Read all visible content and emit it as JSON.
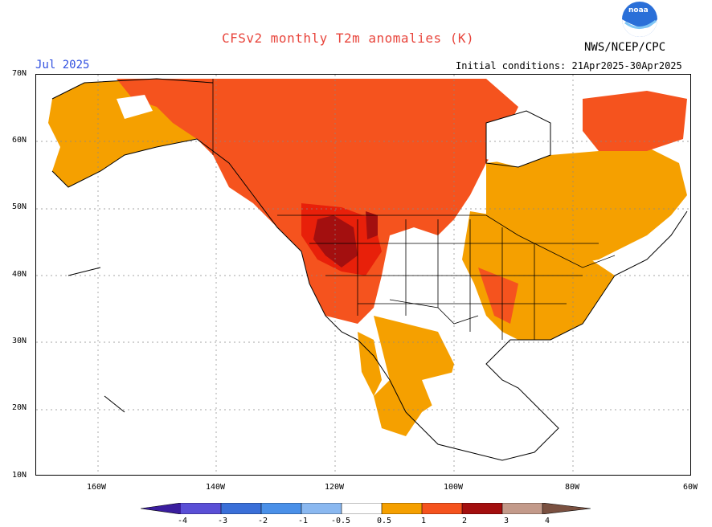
{
  "header": {
    "title": "CFSv2 monthly T2m anomalies (K)",
    "month": "Jul 2025",
    "agency": "NWS/NCEP/CPC",
    "initial_conditions": "Initial conditions: 21Apr2025-30Apr2025",
    "logo_text": "noaa"
  },
  "axes": {
    "lat_labels": [
      "70N",
      "60N",
      "50N",
      "40N",
      "30N",
      "20N",
      "10N"
    ],
    "lon_labels": [
      "160W",
      "140W",
      "120W",
      "100W",
      "80W",
      "60W"
    ]
  },
  "legend": {
    "labels": [
      "-4",
      "-3",
      "-2",
      "-1",
      "-0.5",
      "0.5",
      "1",
      "2",
      "3",
      "4"
    ],
    "colors": {
      "c_lt_m4": "#3a1d9e",
      "c_m4_m3": "#5a4fd6",
      "c_m3_m2": "#3a6fd8",
      "c_m2_m1": "#4a90e8",
      "c_m1_m05": "#8ab8f0",
      "c_neutral": "#ffffff",
      "c_05_1": "#f5a000",
      "c_1_2": "#f5531e",
      "c_2_3": "#e8200a",
      "c_3_4": "#a30f0f",
      "c_4_plus": "#c39a8a",
      "c_gt_4": "#7a5040"
    }
  },
  "map": {
    "domain": "North America",
    "predominant_anomaly": "warm (+0.5 to +3 K) across most of the continent; near-normal over Hudson Bay region, southern Plains, and Mexico/Central America"
  }
}
